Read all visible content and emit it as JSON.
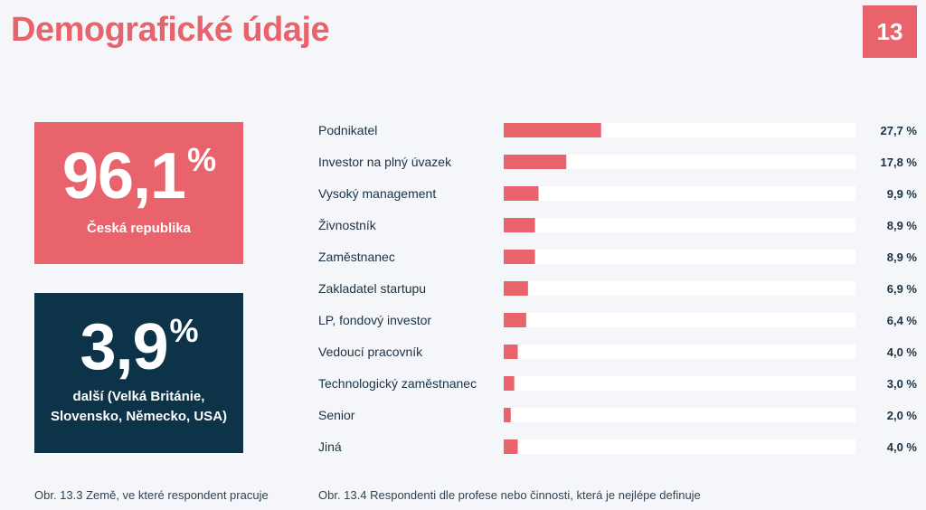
{
  "header": {
    "title": "Demografické údaje",
    "page_number": "13"
  },
  "country_stats": {
    "czech": {
      "value": "96,1",
      "percent_sign": "%",
      "label": "Česká republika"
    },
    "other": {
      "value": "3,9",
      "percent_sign": "%",
      "label": "další (Velká Británie, Slovensko, Německo, USA)"
    }
  },
  "captions": {
    "left": "Obr. 13.3 Země, ve které respondent pracuje",
    "right": "Obr. 13.4 Respondenti dle profese nebo činnosti, která je nejlépe definuje"
  },
  "colors": {
    "accent": "#e8636b",
    "dark": "#0d3349",
    "track": "#ffffff"
  },
  "chart_data": [
    {
      "type": "pie",
      "categories": [
        "Česká republika",
        "další (Velká Británie, Slovensko, Německo, USA)"
      ],
      "values": [
        96.1,
        3.9
      ],
      "value_labels": [
        "96,1 %",
        "3,9 %"
      ],
      "title": "",
      "caption": "Obr. 13.3 Země, ve které respondent pracuje"
    },
    {
      "type": "bar",
      "orientation": "horizontal",
      "categories": [
        "Podnikatel",
        "Investor na plný úvazek",
        "Vysoký management",
        "Živnostník",
        "Zaměstnanec",
        "Zakladatel startupu",
        "LP, fondový investor",
        "Vedoucí pracovník",
        "Technologický zaměstnanec",
        "Senior",
        "Jiná"
      ],
      "values": [
        27.7,
        17.8,
        9.9,
        8.9,
        8.9,
        6.9,
        6.4,
        4.0,
        3.0,
        2.0,
        4.0
      ],
      "value_labels": [
        "27,7 %",
        "17,8 %",
        "9,9 %",
        "8,9 %",
        "8,9 %",
        "6,9 %",
        "6,4 %",
        "4,0 %",
        "3,0 %",
        "2,0 %",
        "4,0 %"
      ],
      "xlim": [
        0,
        100
      ],
      "title": "",
      "xlabel": "",
      "ylabel": "",
      "grid": false,
      "caption": "Obr. 13.4 Respondenti dle profese nebo činnosti, která je nejlépe definuje"
    }
  ]
}
